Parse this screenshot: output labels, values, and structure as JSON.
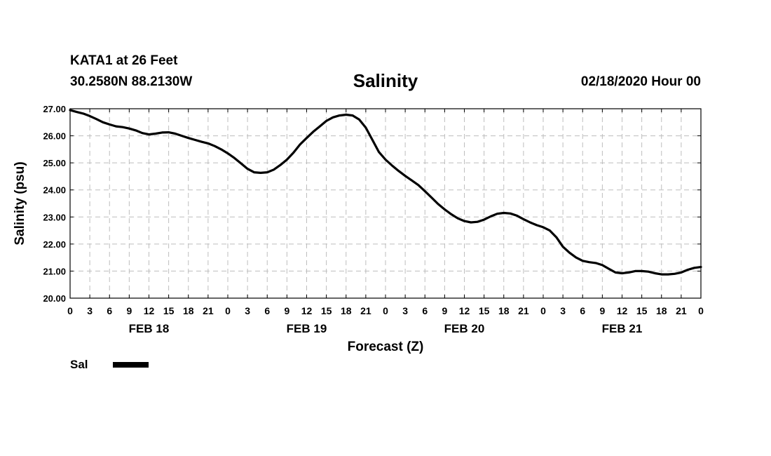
{
  "header": {
    "station": "KATA1 at 26 Feet",
    "coordinates": "30.2580N 88.2130W",
    "date_info": "02/18/2020 Hour 00"
  },
  "chart_data": {
    "type": "line",
    "title": "Salinity",
    "xlabel": "Forecast (Z)",
    "ylabel": "Salinity (psu)",
    "ylim": [
      20,
      27
    ],
    "xlim_hours": [
      0,
      96
    ],
    "y_ticks": [
      "20.00",
      "21.00",
      "22.00",
      "23.00",
      "24.00",
      "25.00",
      "26.00",
      "27.00"
    ],
    "x_tick_labels": [
      "0",
      "3",
      "6",
      "9",
      "12",
      "15",
      "18",
      "21",
      "0",
      "3",
      "6",
      "9",
      "12",
      "15",
      "18",
      "21",
      "0",
      "3",
      "6",
      "9",
      "12",
      "15",
      "18",
      "21",
      "0",
      "3",
      "6",
      "9",
      "12",
      "15",
      "18",
      "21",
      "0"
    ],
    "day_labels": [
      {
        "label": "FEB 18",
        "hour": 12
      },
      {
        "label": "FEB 19",
        "hour": 36
      },
      {
        "label": "FEB 20",
        "hour": 60
      },
      {
        "label": "FEB 21",
        "hour": 84
      }
    ],
    "grid": true,
    "legend": {
      "position": "bottom-left",
      "label": "Sal"
    },
    "series": [
      {
        "name": "Sal",
        "x": [
          0,
          1,
          2,
          3,
          4,
          5,
          6,
          7,
          8,
          9,
          10,
          11,
          12,
          13,
          14,
          15,
          16,
          17,
          18,
          19,
          20,
          21,
          22,
          23,
          24,
          25,
          26,
          27,
          28,
          29,
          30,
          31,
          32,
          33,
          34,
          35,
          36,
          37,
          38,
          39,
          40,
          41,
          42,
          43,
          44,
          45,
          46,
          47,
          48,
          49,
          50,
          51,
          52,
          53,
          54,
          55,
          56,
          57,
          58,
          59,
          60,
          61,
          62,
          63,
          64,
          65,
          66,
          67,
          68,
          69,
          70,
          71,
          72,
          73,
          74,
          75,
          76,
          77,
          78,
          79,
          80,
          81,
          82,
          83,
          84,
          85,
          86,
          87,
          88,
          89,
          90,
          91,
          92,
          93,
          94,
          95,
          96
        ],
        "values": [
          26.95,
          26.88,
          26.82,
          26.73,
          26.62,
          26.5,
          26.42,
          26.35,
          26.32,
          26.27,
          26.2,
          26.1,
          26.05,
          26.08,
          26.12,
          26.13,
          26.08,
          26.0,
          25.92,
          25.85,
          25.78,
          25.72,
          25.62,
          25.5,
          25.35,
          25.18,
          24.98,
          24.78,
          24.65,
          24.63,
          24.65,
          24.75,
          24.92,
          25.12,
          25.38,
          25.68,
          25.92,
          26.15,
          26.35,
          26.55,
          26.68,
          26.75,
          26.78,
          26.75,
          26.6,
          26.3,
          25.85,
          25.4,
          25.12,
          24.9,
          24.7,
          24.52,
          24.35,
          24.18,
          23.95,
          23.72,
          23.48,
          23.28,
          23.1,
          22.95,
          22.85,
          22.8,
          22.82,
          22.9,
          23.02,
          23.12,
          23.15,
          23.13,
          23.05,
          22.92,
          22.8,
          22.7,
          22.62,
          22.5,
          22.25,
          21.9,
          21.68,
          21.5,
          21.38,
          21.33,
          21.3,
          21.22,
          21.08,
          20.95,
          20.92,
          20.95,
          21.0,
          21.0,
          20.98,
          20.92,
          20.88,
          20.88,
          20.9,
          20.95,
          21.05,
          21.12,
          21.15
        ]
      }
    ]
  }
}
